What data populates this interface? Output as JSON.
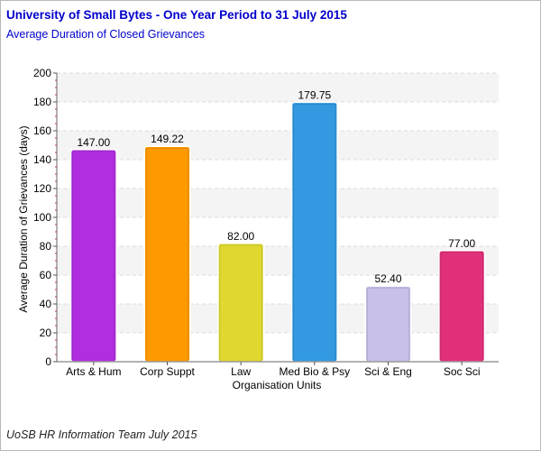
{
  "header": {
    "title": "University of Small Bytes - One Year Period to 31 July 2015",
    "subtitle": "Average Duration of Closed Grievances"
  },
  "footer": {
    "credit": "UoSB HR Information Team July 2015"
  },
  "chart_data": {
    "type": "bar",
    "categories": [
      "Arts & Hum",
      "Corp Suppt",
      "Law",
      "Med Bio & Psy",
      "Sci & Eng",
      "Soc Sci"
    ],
    "values": [
      147.0,
      149.22,
      82.0,
      179.75,
      52.4,
      77.0
    ],
    "value_labels": [
      "147.00",
      "149.22",
      "82.00",
      "179.75",
      "52.40",
      "77.00"
    ],
    "colors": [
      "#b02ee0",
      "#ff9900",
      "#e0d830",
      "#3399e0",
      "#c8c0e8",
      "#e0307a"
    ],
    "xlabel": "Organisation Units",
    "ylabel": "Average Duration of Grievances (days)",
    "ylim": [
      0,
      200
    ],
    "yticks": [
      0,
      20,
      40,
      60,
      80,
      100,
      120,
      140,
      160,
      180,
      200
    ],
    "grid": true
  }
}
